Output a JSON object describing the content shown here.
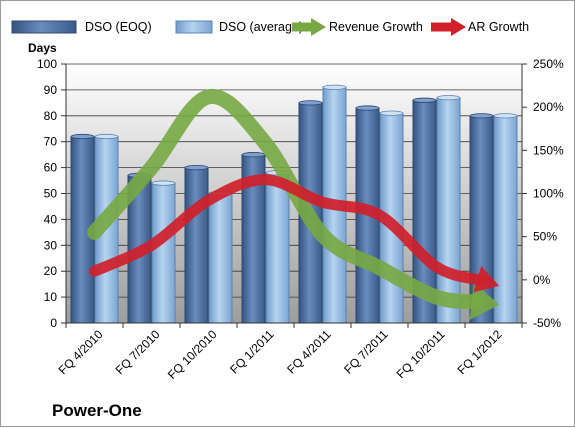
{
  "chart_data": {
    "type": "bar",
    "company": "Power-One",
    "categories": [
      "FQ 4/2010",
      "FQ 7/2010",
      "FQ 10/2010",
      "FQ 1/2011",
      "FQ 4/2011",
      "FQ 7/2011",
      "FQ 10/2011",
      "FQ 1/2012"
    ],
    "ylabel": "Days",
    "ylim": [
      0,
      100
    ],
    "y_ticks": [
      0,
      10,
      20,
      30,
      40,
      50,
      60,
      70,
      80,
      90,
      100
    ],
    "y2lim": [
      -50,
      250
    ],
    "y2_ticks": [
      "-50%",
      "0%",
      "50%",
      "100%",
      "150%",
      "200%",
      "250%"
    ],
    "y2_tick_values": [
      -50,
      0,
      50,
      100,
      150,
      200,
      250
    ],
    "grid": "horizontal",
    "legend": "top",
    "series": [
      {
        "name": "DSO (EOQ)",
        "kind": "bar",
        "axis": "left",
        "color": "#4f6f9f",
        "values": [
          72,
          57,
          60,
          65,
          85,
          83,
          86,
          80
        ]
      },
      {
        "name": "DSO (average)",
        "kind": "bar",
        "axis": "left",
        "color": "#9dc3e6",
        "values": [
          72,
          54,
          50,
          58,
          91,
          81,
          87,
          80
        ]
      },
      {
        "name": "Revenue Growth",
        "kind": "arrow-line",
        "axis": "right",
        "color": "#77a843",
        "values": [
          55,
          130,
          212,
          158,
          52,
          14,
          -20,
          -28
        ]
      },
      {
        "name": "AR Growth",
        "kind": "arrow-line",
        "axis": "right",
        "color": "#d0202a",
        "values": [
          10,
          40,
          92,
          116,
          90,
          75,
          15,
          -5
        ]
      }
    ]
  }
}
